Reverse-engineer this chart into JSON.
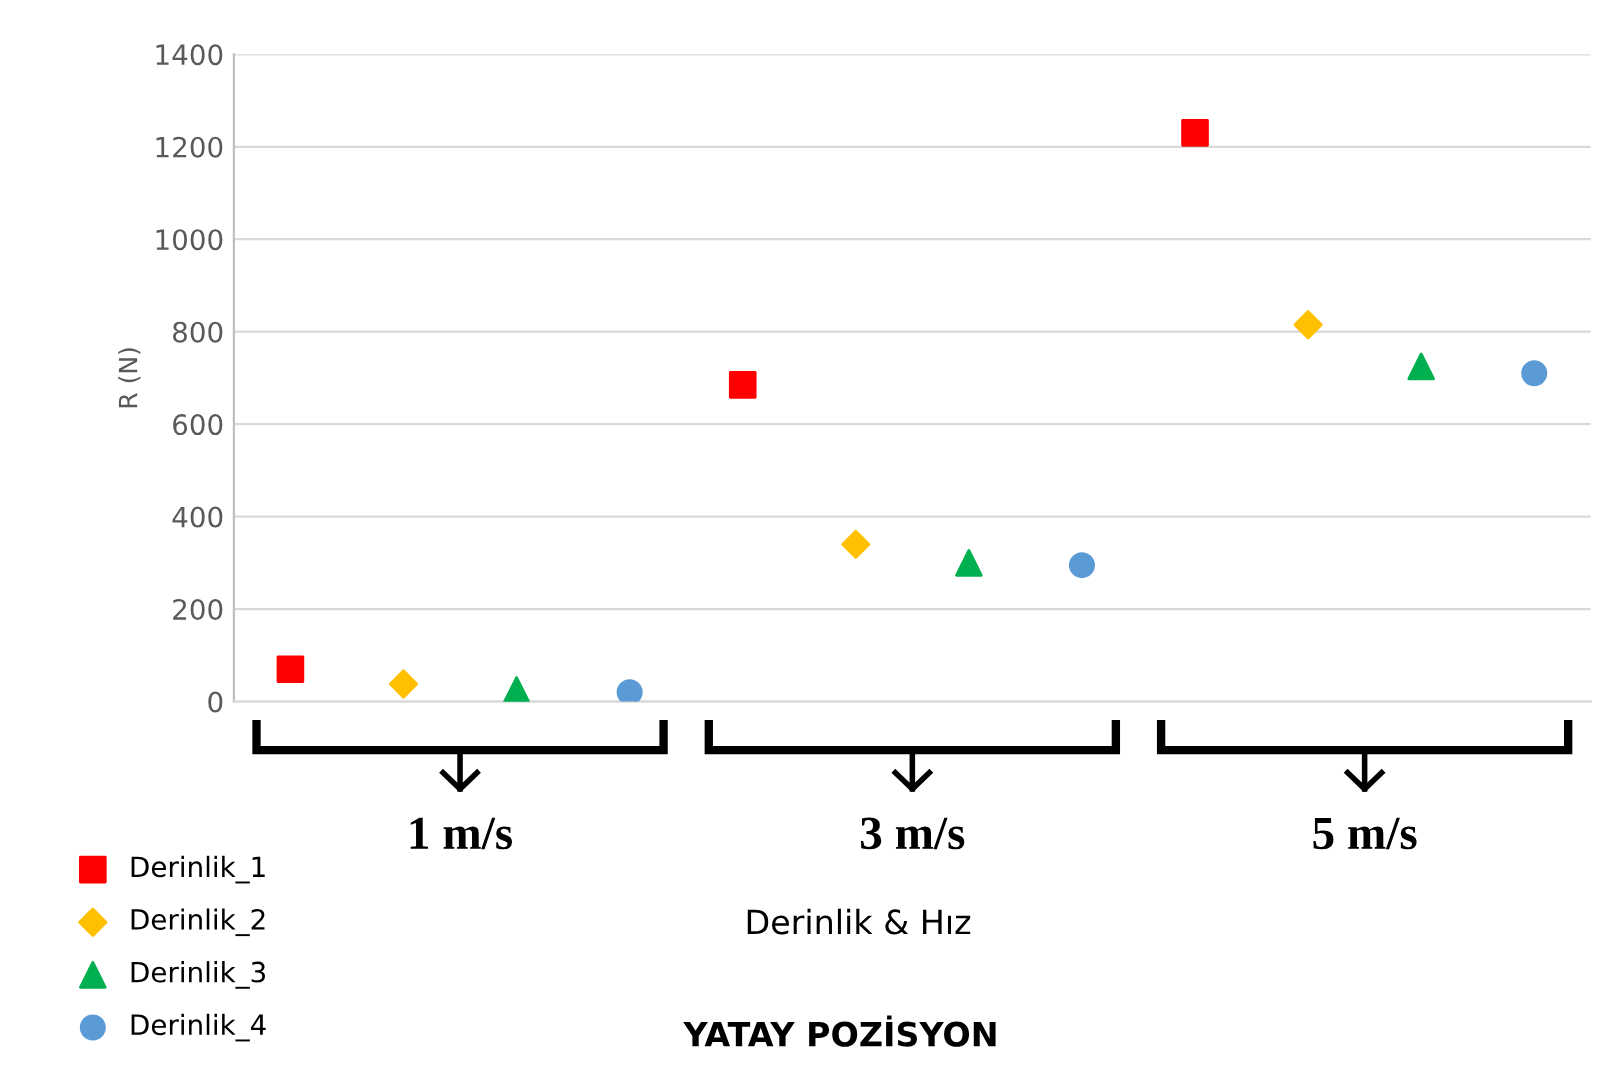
{
  "chart_data": {
    "type": "scatter",
    "title": "YATAY POZİSYON",
    "ylabel": "R (N)",
    "categories": [
      null,
      null,
      null,
      null,
      null,
      null,
      null,
      null,
      null,
      null,
      null,
      null
    ],
    "series": [
      {
        "name": "Derinlik_1",
        "color": "#ff0000",
        "marker": "square",
        "values": [
          70,
          null,
          null,
          null,
          685,
          null,
          null,
          null,
          1230,
          null,
          null,
          null
        ]
      },
      {
        "name": "Derinlik_2",
        "color": "#ffc000",
        "marker": "diamond",
        "values": [
          null,
          38,
          null,
          null,
          null,
          340,
          null,
          null,
          null,
          815,
          null,
          null
        ]
      },
      {
        "name": "Derinlik_3",
        "color": "#00b050",
        "marker": "triangle",
        "values": [
          null,
          null,
          25,
          null,
          null,
          null,
          300,
          null,
          null,
          null,
          725,
          null
        ]
      },
      {
        "name": "Derinlik_4",
        "color": "#5b9bd5",
        "marker": "circle",
        "values": [
          null,
          null,
          null,
          20,
          null,
          null,
          null,
          295,
          null,
          null,
          null,
          710
        ]
      }
    ],
    "annotations": [
      "1 m/s",
      "3 m/s",
      "5 m/s",
      "Derinlik & Hız"
    ],
    "ylim": [
      0,
      1400
    ],
    "yticks": [
      0,
      200,
      400,
      600,
      800,
      1000,
      1200,
      1400
    ],
    "tick_labels": "y",
    "grid": "y",
    "legend": "bottom left"
  }
}
